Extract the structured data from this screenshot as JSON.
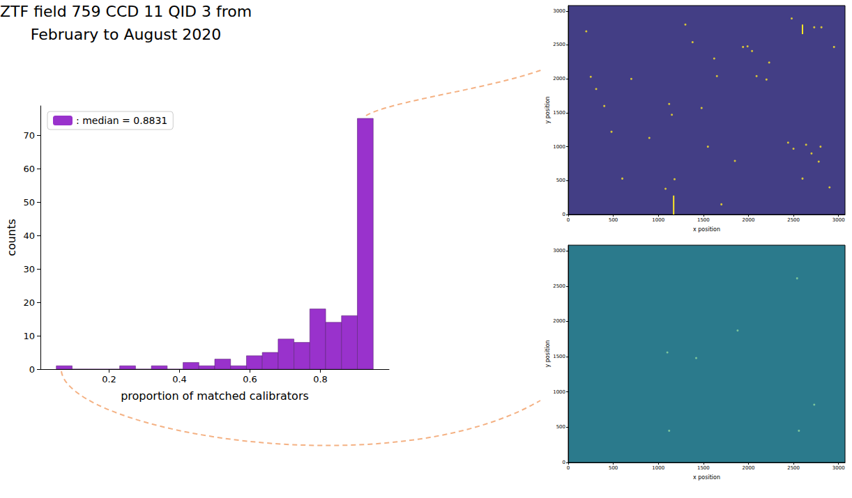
{
  "chart_data": [
    {
      "type": "histogram",
      "title": "ZTF field 759 CCD 11 QID 3 from\nFebruary to August 2020",
      "x_label": "proportion of matched calibrators",
      "y_label": "counts",
      "bins": [
        0.05,
        0.095,
        0.14,
        0.185,
        0.23,
        0.275,
        0.32,
        0.365,
        0.41,
        0.455,
        0.5,
        0.545,
        0.59,
        0.635,
        0.68,
        0.725,
        0.77,
        0.815,
        0.86,
        0.905,
        0.95
      ],
      "series": [
        {
          "name": ": median = 0.8831",
          "color": "#9932cc",
          "values": [
            1,
            0,
            0,
            0,
            1,
            0,
            1,
            0,
            2,
            1,
            3,
            1,
            4,
            5,
            9,
            8,
            18,
            14,
            16,
            75
          ]
        }
      ],
      "xlim": [
        0.005,
        0.995
      ],
      "xticks": [
        0.2,
        0.4,
        0.6,
        0.8
      ],
      "ylim": [
        0,
        78.75
      ],
      "yticks": [
        0,
        10,
        20,
        30,
        40,
        50,
        60,
        70
      ],
      "grid": false,
      "legend": "upper left"
    },
    {
      "type": "scatter",
      "x_label": "x position",
      "y_label": "y position",
      "series": [
        {
          "type": "scatter",
          "color": "#fde725",
          "x": [
            1180,
            1480,
            1120,
            2600,
            2200,
            2480,
            2090,
            2730,
            2810,
            2780,
            2700,
            2640,
            1940,
            1380,
            2040,
            1620,
            1150,
            480,
            400,
            200,
            250,
            2230,
            2800,
            1550,
            1650,
            1850,
            900,
            600,
            2440,
            2950,
            310,
            1080,
            1990,
            2500,
            1300,
            700,
            2900,
            1700
          ],
          "y": [
            520,
            1570,
            1630,
            530,
            1990,
            2890,
            2040,
            2760,
            2760,
            780,
            900,
            1030,
            2470,
            2540,
            2410,
            2300,
            1470,
            1220,
            1600,
            2700,
            2030,
            2240,
            1000,
            1000,
            2040,
            790,
            1130,
            530,
            1060,
            2470,
            1850,
            380,
            2480,
            970,
            2800,
            2000,
            400,
            150
          ]
        },
        {
          "type": "line",
          "color": "#fde725",
          "x": [
            1170,
            1170,
            null,
            2600,
            2600
          ],
          "y": [
            0,
            280,
            null,
            2660,
            2800
          ]
        }
      ],
      "xlim": [
        0,
        3072
      ],
      "ylim": [
        0,
        3080
      ],
      "xticks": [
        0,
        500,
        1000,
        1500,
        2000,
        2500,
        3000
      ],
      "yticks": [
        0,
        500,
        1000,
        1500,
        2000,
        2500,
        3000
      ],
      "grid": false
    },
    {
      "type": "scatter",
      "x_label": "x position",
      "y_label": "y position",
      "series": [
        {
          "type": "scatter",
          "color": "#8fd7a0",
          "x": [
            2540,
            1420,
            1100,
            1120,
            2560,
            2730,
            1880
          ],
          "y": [
            2610,
            1480,
            1560,
            450,
            450,
            820,
            1870
          ]
        }
      ],
      "xlim": [
        0,
        3072
      ],
      "ylim": [
        0,
        3080
      ],
      "xticks": [
        0,
        500,
        1000,
        1500,
        2000,
        2500,
        3000
      ],
      "yticks": [
        0,
        500,
        1000,
        1500,
        2000,
        2500,
        3000
      ],
      "grid": false
    }
  ]
}
